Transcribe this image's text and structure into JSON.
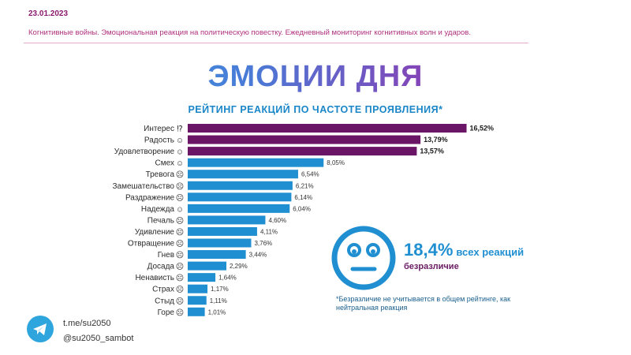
{
  "header": {
    "date": "23.01.2023",
    "subtitle": "Когнитивные войны. Эмоциональная реакция на политическую повестку. Ежедневный мониторинг когнитивных волн и ударов."
  },
  "title": "ЭМОЦИИ ДНЯ",
  "chart_data": {
    "type": "bar",
    "orientation": "horizontal",
    "title": "РЕЙТИНГ РЕАКЦИЙ ПО ЧАСТОТЕ ПРОЯВЛЕНИЯ*",
    "categories": [
      "Интерес",
      "Радость",
      "Удовлетворение",
      "Смех",
      "Тревога",
      "Замешательство",
      "Раздражение",
      "Надежда",
      "Печаль",
      "Удивление",
      "Отвращение",
      "Гнев",
      "Досада",
      "Ненависть",
      "Страх",
      "Стыд",
      "Горе"
    ],
    "values": [
      16.52,
      13.79,
      13.57,
      8.05,
      6.54,
      6.21,
      6.14,
      6.04,
      4.6,
      4.11,
      3.76,
      3.44,
      2.29,
      1.64,
      1.17,
      1.11,
      1.01
    ],
    "value_labels": [
      "16,52%",
      "13,79%",
      "13,57%",
      "8,05%",
      "6,54%",
      "6,21%",
      "6,14%",
      "6,04%",
      "4,60%",
      "4,11%",
      "3,76%",
      "3,44%",
      "2,29%",
      "1,64%",
      "1,17%",
      "1,11%",
      "1,01%"
    ],
    "colors": {
      "top": "#6b1566",
      "rest": "#1f8fd1"
    },
    "top_count": 3,
    "grid": false,
    "legend": "none"
  },
  "indifference": {
    "value": "18,4%",
    "rest": "всех реакций",
    "label": "безразличие",
    "icon": "neutral-face-icon"
  },
  "note": "*Безразличие не учитывается в общем рейтинге, как нейтральная реакция",
  "contacts": {
    "link": "t.me/su2050",
    "bot": "@su2050_sambot",
    "icon": "telegram-icon"
  }
}
